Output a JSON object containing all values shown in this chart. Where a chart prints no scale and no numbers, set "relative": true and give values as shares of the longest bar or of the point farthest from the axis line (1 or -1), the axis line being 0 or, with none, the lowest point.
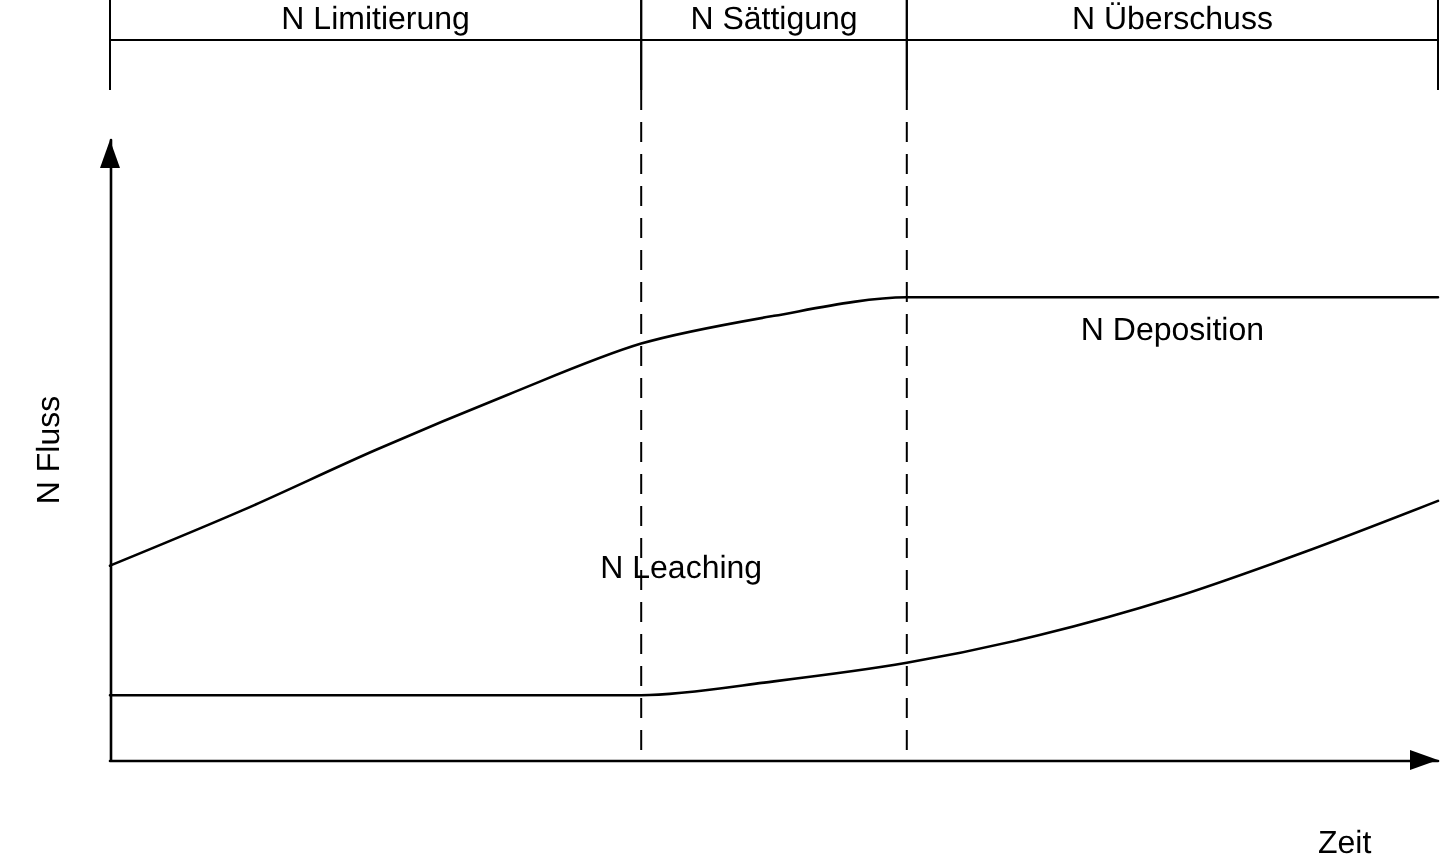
{
  "chart_data": {
    "type": "line",
    "relative": true,
    "xlabel": "Zeit",
    "ylabel": "N Fluss",
    "categories": [
      null,
      null,
      null,
      null,
      null,
      null,
      null,
      null,
      null,
      null,
      null
    ],
    "series": [
      {
        "name": "N Deposition",
        "color": "#000000",
        "values": [
          0.42,
          0.54,
          0.67,
          0.79,
          0.9,
          0.96,
          1,
          1,
          1,
          1,
          1
        ]
      },
      {
        "name": "N Leaching",
        "color": "#000000",
        "values": [
          0.14,
          0.14,
          0.14,
          0.14,
          0.14,
          0.17,
          0.21,
          0.27,
          0.35,
          0.45,
          0.56
        ]
      }
    ],
    "annotations": [
      "N Limitierung",
      "N Sättigung",
      "N Überschuss"
    ],
    "marker": "none",
    "line_style": "solid",
    "grid": false,
    "legend": false
  }
}
